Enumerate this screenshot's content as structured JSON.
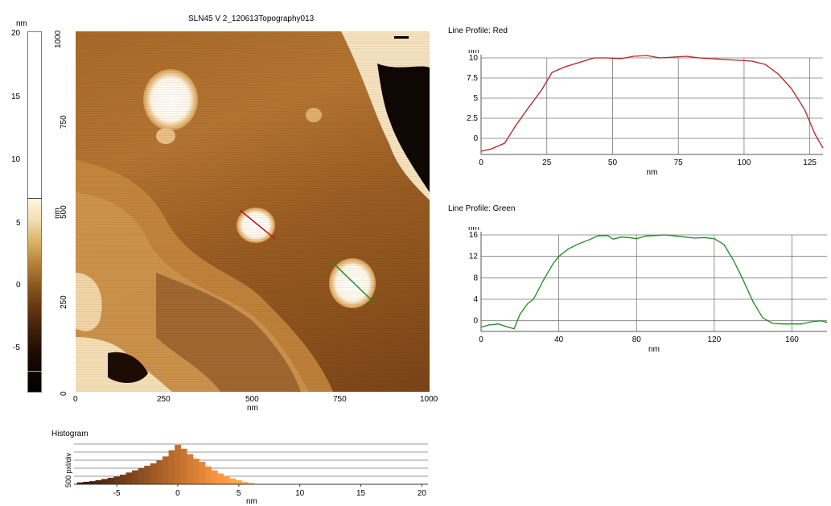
{
  "image": {
    "title": "SLN45 V 2_120613Topography013",
    "x_unit": "nm",
    "y_unit": "nm",
    "x_ticks": [
      "0",
      "250",
      "500",
      "750",
      "1000"
    ],
    "y_ticks": [
      "0",
      "250",
      "500",
      "750",
      "1000"
    ]
  },
  "colorbar": {
    "unit": "nm",
    "ticks": [
      "20",
      "15",
      "10",
      "5",
      "0",
      "-5"
    ],
    "range": [
      -8.5,
      20
    ]
  },
  "histogram": {
    "title": "Histogram",
    "ylabel": "500 pxl/div",
    "xlabel": "nm",
    "x_ticks": [
      "-5",
      "0",
      "5",
      "10",
      "15",
      "20"
    ]
  },
  "profile_red": {
    "title": "Line Profile: Red",
    "ylabel": "nm",
    "xlabel": "nm",
    "color": "#b22222"
  },
  "profile_green": {
    "title": "Line Profile: Green",
    "ylabel": "nm",
    "xlabel": "nm",
    "color": "#1e8a1e"
  },
  "chart_data": [
    {
      "type": "line",
      "title": "Line Profile: Red",
      "xlabel": "nm",
      "ylabel": "nm",
      "xlim": [
        0,
        130
      ],
      "ylim": [
        -2,
        10
      ],
      "x_ticks": [
        0,
        25,
        50,
        75,
        100,
        125
      ],
      "y_ticks": [
        0,
        2.5,
        5,
        7.5,
        10
      ],
      "y_tick_labels": [
        "0",
        "2.5",
        "5",
        "7.5",
        "10"
      ],
      "color": "#b22222",
      "series": [
        {
          "x": [
            0,
            4,
            9,
            13,
            18,
            23,
            27,
            32,
            38,
            43,
            48,
            53,
            58,
            63,
            68,
            73,
            78,
            83,
            88,
            93,
            98,
            103,
            108,
            113,
            118,
            123,
            127,
            130
          ],
          "y": [
            -1.6,
            -1.3,
            -0.6,
            1.5,
            3.8,
            6.0,
            8.2,
            8.9,
            9.5,
            10.0,
            10.0,
            9.9,
            10.2,
            10.3,
            10.0,
            10.1,
            10.2,
            10.0,
            9.9,
            9.8,
            9.7,
            9.6,
            9.2,
            8.0,
            6.2,
            3.6,
            0.5,
            -1.2
          ]
        }
      ]
    },
    {
      "type": "line",
      "title": "Line Profile: Green",
      "xlabel": "nm",
      "ylabel": "nm",
      "xlim": [
        0,
        178
      ],
      "ylim": [
        -2,
        16
      ],
      "x_ticks": [
        0,
        40,
        80,
        120,
        160
      ],
      "y_ticks": [
        0,
        4,
        8,
        12,
        16
      ],
      "y_tick_labels": [
        "0",
        "4",
        "8",
        "12",
        "16"
      ],
      "color": "#1e8a1e",
      "series": [
        {
          "x": [
            0,
            4,
            9,
            14,
            17,
            20,
            24,
            27,
            32,
            37,
            40,
            45,
            50,
            55,
            60,
            65,
            68,
            72,
            76,
            80,
            85,
            90,
            95,
            100,
            105,
            110,
            115,
            120,
            125,
            130,
            135,
            140,
            145,
            150,
            155,
            160,
            165,
            170,
            175,
            178
          ],
          "y": [
            -1.2,
            -0.8,
            -0.6,
            -1.2,
            -1.5,
            1.2,
            3.2,
            4.0,
            7.5,
            10.6,
            12.0,
            13.4,
            14.3,
            15.0,
            15.8,
            15.9,
            15.2,
            15.6,
            15.5,
            15.3,
            15.8,
            15.9,
            16.0,
            15.8,
            15.6,
            15.4,
            15.5,
            15.3,
            14.2,
            11.2,
            7.5,
            3.5,
            0.5,
            -0.5,
            -0.6,
            -0.6,
            -0.6,
            -0.2,
            0.0,
            -0.3
          ]
        }
      ]
    },
    {
      "type": "bar",
      "title": "Histogram",
      "xlabel": "nm",
      "ylabel": "500 pxl/div",
      "xlim": [
        -8.5,
        20.5
      ],
      "x_ticks": [
        -5,
        0,
        5,
        10,
        15,
        20
      ],
      "ylim": [
        0,
        2600
      ],
      "x": [
        -8,
        -7.5,
        -7,
        -6.5,
        -6,
        -5.5,
        -5,
        -4.5,
        -4,
        -3.5,
        -3,
        -2.5,
        -2,
        -1.5,
        -1,
        -0.5,
        0,
        0.5,
        1,
        1.5,
        2,
        2.5,
        3,
        3.5,
        4,
        4.5,
        5,
        5.5,
        6
      ],
      "values": [
        120,
        160,
        200,
        260,
        340,
        420,
        500,
        620,
        760,
        900,
        1050,
        1200,
        1350,
        1550,
        1800,
        2200,
        2550,
        2300,
        1950,
        1650,
        1450,
        1150,
        900,
        700,
        520,
        380,
        260,
        150,
        80
      ]
    }
  ]
}
